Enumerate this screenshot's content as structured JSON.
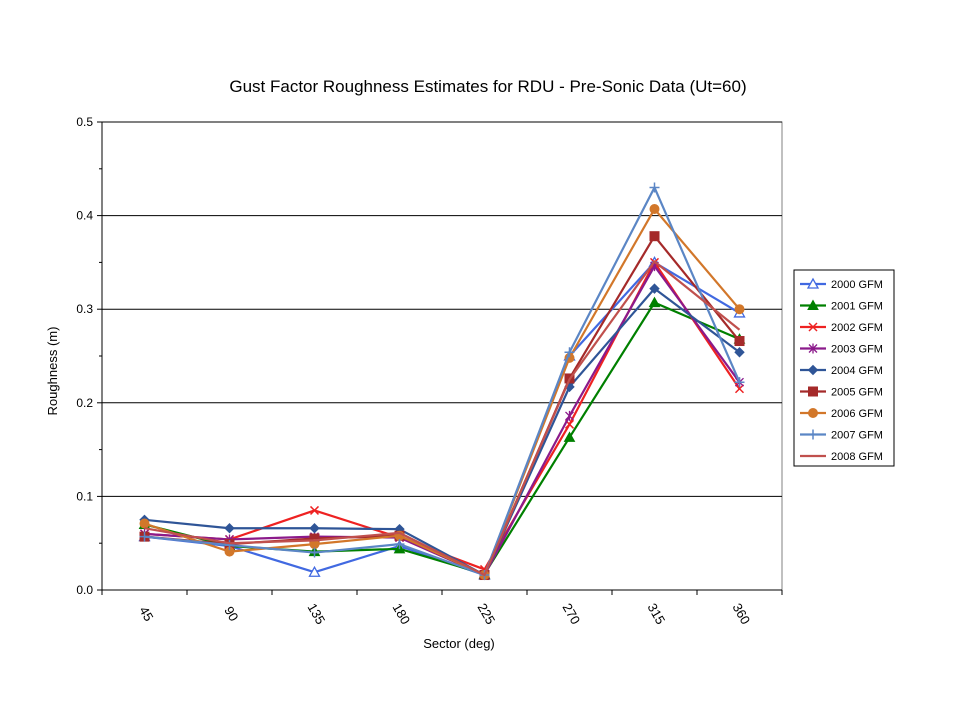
{
  "chart_data": {
    "type": "line",
    "title": "Gust Factor Roughness Estimates for RDU - Pre-Sonic Data (Ut=60)",
    "xlabel": "Sector (deg)",
    "ylabel": "Roughness (m)",
    "categories": [
      "45",
      "90",
      "135",
      "180",
      "225",
      "270",
      "315",
      "360"
    ],
    "ylim": [
      0,
      0.5
    ],
    "yticks": [
      "0.0",
      "0.1",
      "0.2",
      "0.3",
      "0.4",
      "0.5"
    ],
    "grid": "horizontal major",
    "legend_position": "right",
    "series": [
      {
        "name": "2000 GFM",
        "color": "#4169e1",
        "marker": "triangle-open",
        "values": [
          0.057,
          0.047,
          0.019,
          0.047,
          0.016,
          0.25,
          0.35,
          0.296
        ]
      },
      {
        "name": "2001 GFM",
        "color": "#008000",
        "marker": "triangle",
        "values": [
          0.07,
          0.047,
          0.041,
          0.044,
          0.017,
          0.163,
          0.307,
          0.268
        ]
      },
      {
        "name": "2002 GFM",
        "color": "#ee2222",
        "marker": "x",
        "values": [
          0.06,
          0.054,
          0.085,
          0.056,
          0.022,
          0.177,
          0.35,
          0.215
        ]
      },
      {
        "name": "2003 GFM",
        "color": "#8b1a8b",
        "marker": "star",
        "values": [
          0.06,
          0.054,
          0.057,
          0.056,
          0.016,
          0.186,
          0.346,
          0.222
        ]
      },
      {
        "name": "2004 GFM",
        "color": "#2f5597",
        "marker": "diamond",
        "values": [
          0.075,
          0.066,
          0.066,
          0.065,
          0.016,
          0.217,
          0.322,
          0.254
        ]
      },
      {
        "name": "2005 GFM",
        "color": "#a52a2a",
        "marker": "square",
        "values": [
          0.057,
          0.049,
          0.055,
          0.058,
          0.016,
          0.226,
          0.378,
          0.266
        ]
      },
      {
        "name": "2006 GFM",
        "color": "#d2772a",
        "marker": "circle",
        "values": [
          0.071,
          0.041,
          0.049,
          0.058,
          0.016,
          0.248,
          0.407,
          0.3
        ]
      },
      {
        "name": "2007 GFM",
        "color": "#5b86c5",
        "marker": "plus",
        "values": [
          0.057,
          0.048,
          0.04,
          0.049,
          0.016,
          0.254,
          0.43,
          0.222
        ]
      },
      {
        "name": "2008 GFM",
        "color": "#c0504d",
        "marker": "none",
        "values": [
          0.066,
          0.05,
          0.053,
          0.061,
          0.016,
          0.225,
          0.351,
          0.278
        ]
      }
    ]
  }
}
